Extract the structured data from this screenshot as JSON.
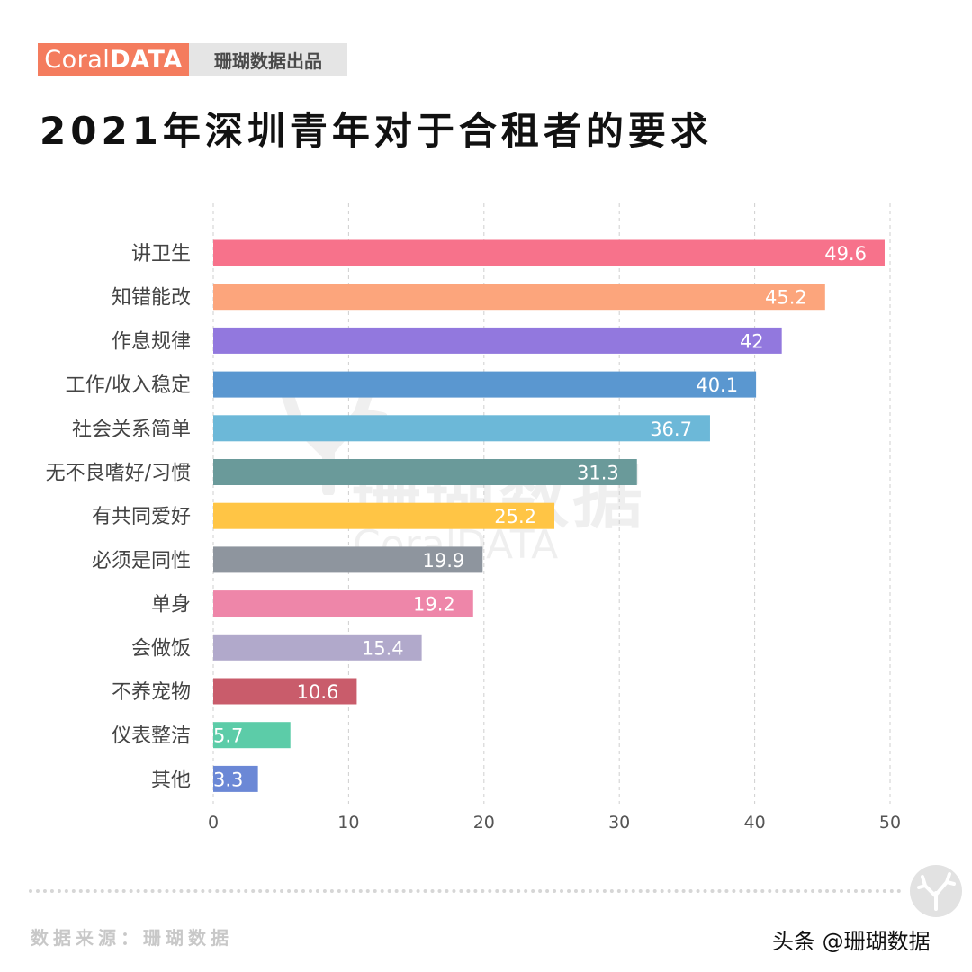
{
  "brand": {
    "logo_light": "Coral",
    "logo_bold": "DATA",
    "tag": "珊瑚数据出品"
  },
  "title": "2021年深圳青年对于合租者的要求",
  "watermark": {
    "cn": "珊瑚数据",
    "en": "CoralDATA"
  },
  "footer": {
    "source": "数据来源：珊瑚数据",
    "credit": "头条 @珊瑚数据"
  },
  "chart_data": {
    "type": "bar",
    "orientation": "horizontal",
    "title": "2021年深圳青年对于合租者的要求",
    "xlabel": "",
    "ylabel": "",
    "xlim": [
      0,
      50
    ],
    "xticks": [
      0,
      10,
      20,
      30,
      40,
      50
    ],
    "grid": true,
    "categories": [
      "讲卫生",
      "知错能改",
      "作息规律",
      "工作/收入稳定",
      "社会关系简单",
      "无不良嗜好/习惯",
      "有共同爱好",
      "必须是同性",
      "单身",
      "会做饭",
      "不养宠物",
      "仪表整洁",
      "其他"
    ],
    "values": [
      49.6,
      45.2,
      42,
      40.1,
      36.7,
      31.3,
      25.2,
      19.9,
      19.2,
      15.4,
      10.6,
      5.7,
      3.3
    ],
    "labels": [
      "49.6",
      "45.2",
      "42",
      "40.1",
      "36.7",
      "31.3",
      "25.2",
      "19.9",
      "19.2",
      "15.4",
      "10.6",
      "5.7",
      "3.3"
    ],
    "colors": [
      "#f7728b",
      "#fca57c",
      "#9278de",
      "#5a97d0",
      "#6cb8d8",
      "#6a9a9a",
      "#ffc545",
      "#8e959e",
      "#ee86a9",
      "#b1a9cb",
      "#c95c6b",
      "#5ccca8",
      "#6b88d6"
    ]
  }
}
